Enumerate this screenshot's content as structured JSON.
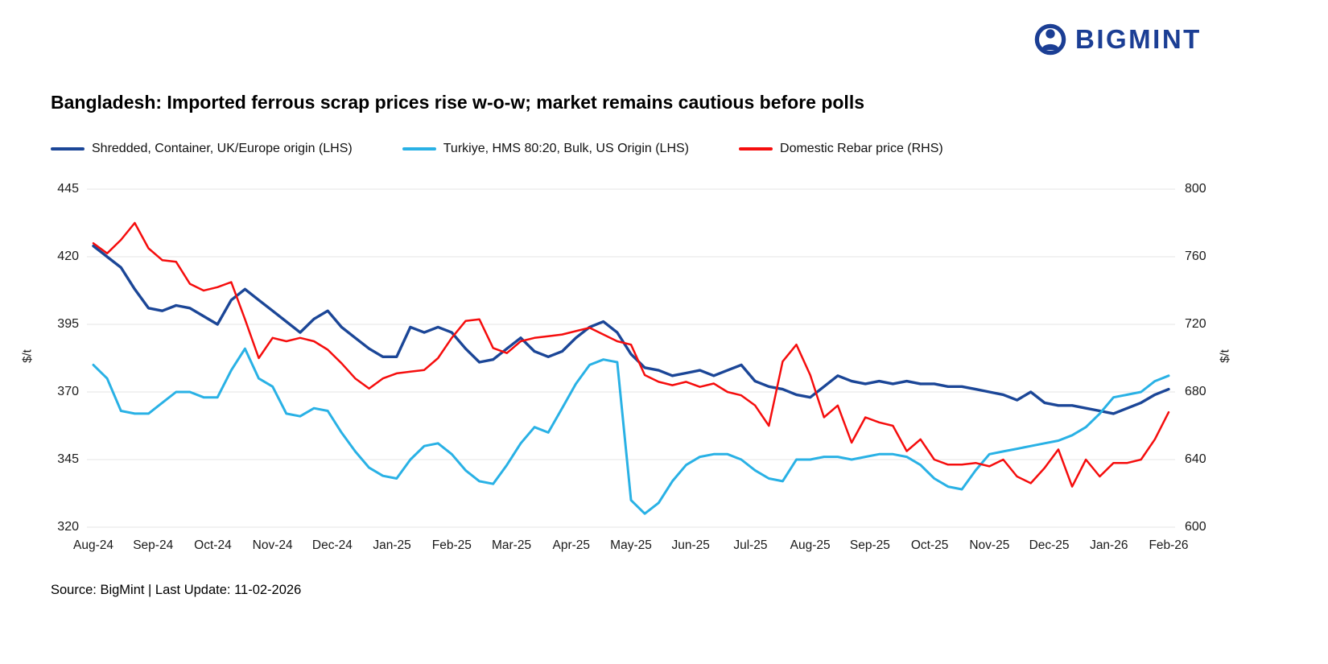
{
  "logo": {
    "text": "BIGMINT",
    "color": "#1b3e94"
  },
  "source_note": "Source: BigMint | Last Update: 11-02-2026",
  "chart_data": {
    "type": "line",
    "title": "Bangladesh: Imported ferrous scrap prices rise w-o-w; market remains cautious before polls",
    "x_frequency": "weekly",
    "grid": "horizontal",
    "legend_position": "top-left",
    "categories": [
      "Aug-24",
      "Sep-24",
      "Oct-24",
      "Nov-24",
      "Dec-24",
      "Jan-25",
      "Feb-25",
      "Mar-25",
      "Apr-25",
      "May-25",
      "Jun-25",
      "Jul-25",
      "Aug-25",
      "Sep-25",
      "Oct-25",
      "Nov-25",
      "Dec-25",
      "Jan-26",
      "Feb-26"
    ],
    "axes": {
      "left": {
        "label": "$/t",
        "range": [
          320,
          445
        ],
        "ticks": [
          320,
          345,
          370,
          395,
          420,
          445
        ]
      },
      "right": {
        "label": "$/t",
        "range": [
          600,
          800
        ],
        "ticks": [
          600,
          640,
          680,
          720,
          760,
          800
        ]
      }
    },
    "series": [
      {
        "name": "Shredded, Container, UK/Europe origin (LHS)",
        "axis": "left",
        "color": "#1b4697",
        "stroke_width": 3.4,
        "values": [
          424,
          420,
          416,
          408,
          401,
          400,
          402,
          401,
          398,
          395,
          404,
          408,
          404,
          400,
          396,
          392,
          397,
          400,
          394,
          390,
          386,
          383,
          383,
          394,
          392,
          394,
          392,
          386,
          381,
          382,
          386,
          390,
          385,
          383,
          385,
          390,
          394,
          396,
          392,
          384,
          379,
          378,
          376,
          377,
          378,
          376,
          378,
          380,
          374,
          372,
          371,
          369,
          368,
          372,
          376,
          374,
          373,
          374,
          373,
          374,
          373,
          373,
          372,
          372,
          371,
          370,
          369,
          367,
          370,
          366,
          365,
          365,
          364,
          363,
          362,
          364,
          366,
          369,
          371
        ]
      },
      {
        "name": "Turkiye, HMS 80:20, Bulk, US Origin (LHS)",
        "axis": "left",
        "color": "#29b1e5",
        "stroke_width": 3,
        "values": [
          380,
          375,
          363,
          362,
          362,
          366,
          370,
          370,
          368,
          368,
          378,
          386,
          375,
          372,
          362,
          361,
          364,
          363,
          355,
          348,
          342,
          339,
          338,
          345,
          350,
          351,
          347,
          341,
          337,
          336,
          343,
          351,
          357,
          355,
          364,
          373,
          380,
          382,
          381,
          330,
          325,
          329,
          337,
          343,
          346,
          347,
          347,
          345,
          341,
          338,
          337,
          345,
          345,
          346,
          346,
          345,
          346,
          347,
          347,
          346,
          343,
          338,
          335,
          334,
          341,
          347,
          348,
          349,
          350,
          351,
          352,
          354,
          357,
          362,
          368,
          369,
          370,
          374,
          376
        ]
      },
      {
        "name": "Domestic Rebar price (RHS)",
        "axis": "right",
        "color": "#f50d0d",
        "stroke_width": 2.5,
        "values": [
          768,
          762,
          770,
          780,
          765,
          758,
          757,
          744,
          740,
          742,
          745,
          723,
          700,
          712,
          710,
          712,
          710,
          705,
          697,
          688,
          682,
          688,
          691,
          692,
          693,
          700,
          712,
          722,
          723,
          706,
          703,
          710,
          712,
          713,
          714,
          716,
          718,
          714,
          710,
          708,
          690,
          686,
          684,
          686,
          683,
          685,
          680,
          678,
          672,
          660,
          698,
          708,
          690,
          665,
          672,
          650,
          665,
          662,
          660,
          645,
          652,
          640,
          637,
          637,
          638,
          636,
          640,
          630,
          626,
          635,
          646,
          624,
          640,
          630,
          638,
          638,
          640,
          652,
          668
        ]
      }
    ]
  }
}
